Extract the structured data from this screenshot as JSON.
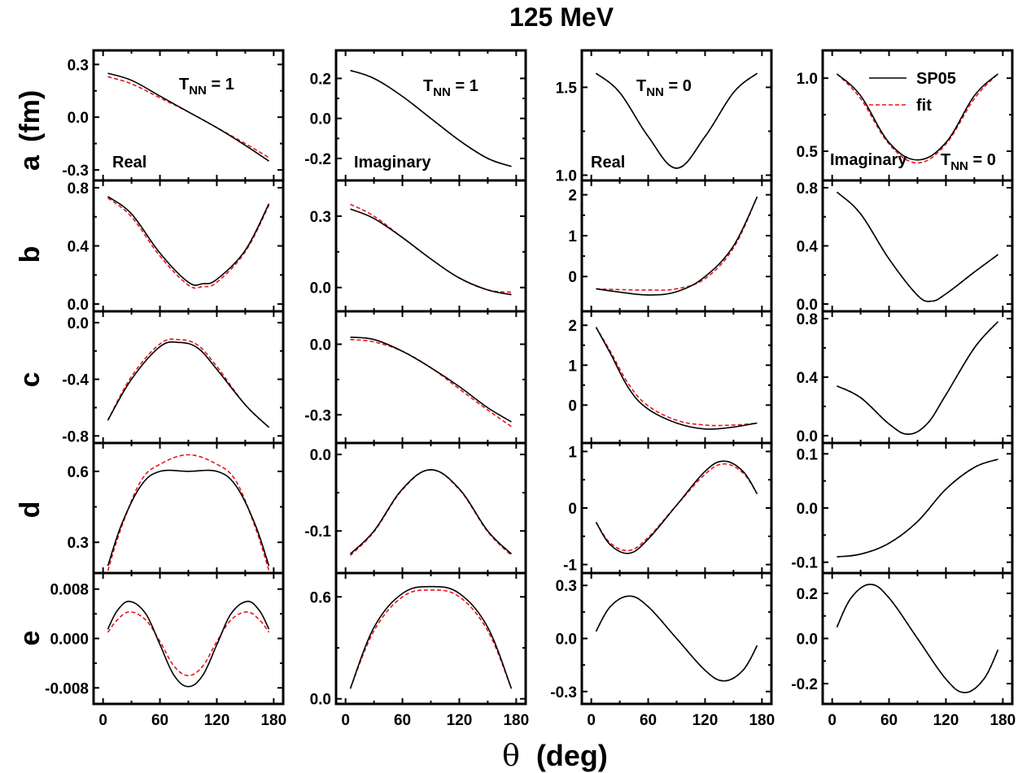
{
  "figure": {
    "title": "125 MeV",
    "xlabel_symbol": "θ",
    "xlabel_unit": "(deg)",
    "ylabel_prefix": "a",
    "ylabel_unit": "(fm)",
    "legend": {
      "solid": "SP05",
      "dashed": "fit"
    },
    "colors": {
      "solid": "#000000",
      "dashed": "#e8141c"
    }
  },
  "chart_data": {
    "type": "line",
    "x_range": [
      -10,
      190
    ],
    "x_ticks": [
      0,
      60,
      120,
      180
    ],
    "x_domain": [
      5,
      175
    ],
    "series_names": [
      "SP05",
      "fit"
    ],
    "columns": [
      {
        "index": 0,
        "type": "Real",
        "tnn": "1"
      },
      {
        "index": 1,
        "type": "Imaginary",
        "tnn": "1"
      },
      {
        "index": 2,
        "type": "Real",
        "tnn": "0"
      },
      {
        "index": 3,
        "type": "Imaginary",
        "tnn": "0"
      }
    ],
    "rows": [
      "a",
      "b",
      "c",
      "d",
      "e"
    ],
    "panels": [
      {
        "row": 0,
        "col": 0,
        "ylim": [
          -0.36,
          0.38
        ],
        "yticks": [
          "0.3",
          "0.0",
          "-0.3"
        ],
        "yticks_val": [
          0.3,
          0.0,
          -0.3
        ],
        "x": [
          5,
          30,
          60,
          90,
          120,
          150,
          175
        ],
        "SP05": [
          0.25,
          0.21,
          0.12,
          0.03,
          -0.06,
          -0.16,
          -0.25
        ],
        "fit": [
          0.23,
          0.19,
          0.11,
          0.03,
          -0.06,
          -0.15,
          -0.23
        ]
      },
      {
        "row": 0,
        "col": 1,
        "ylim": [
          -0.31,
          0.34
        ],
        "yticks": [
          "0.2",
          "0.0",
          "-0.2"
        ],
        "yticks_val": [
          0.2,
          0.0,
          -0.2
        ],
        "x": [
          5,
          30,
          60,
          90,
          120,
          150,
          175
        ],
        "SP05": [
          0.24,
          0.2,
          0.11,
          0.0,
          -0.11,
          -0.2,
          -0.24
        ],
        "fit": [
          0.24,
          0.2,
          0.11,
          0.0,
          -0.11,
          -0.2,
          -0.24
        ]
      },
      {
        "row": 0,
        "col": 2,
        "ylim": [
          0.97,
          1.71
        ],
        "yticks": [
          "1.5",
          "1.0"
        ],
        "yticks_val": [
          1.5,
          1.0
        ],
        "x": [
          5,
          30,
          60,
          90,
          120,
          150,
          175
        ],
        "SP05": [
          1.58,
          1.47,
          1.22,
          1.04,
          1.22,
          1.47,
          1.58
        ],
        "fit": [
          1.58,
          1.47,
          1.22,
          1.04,
          1.22,
          1.47,
          1.58
        ]
      },
      {
        "row": 0,
        "col": 3,
        "ylim": [
          0.3,
          1.19
        ],
        "yticks": [
          "1.0",
          "0.5"
        ],
        "yticks_val": [
          1.0,
          0.5
        ],
        "x": [
          5,
          30,
          60,
          90,
          120,
          150,
          175
        ],
        "SP05": [
          1.03,
          0.88,
          0.56,
          0.44,
          0.56,
          0.88,
          1.03
        ],
        "fit": [
          1.03,
          0.86,
          0.55,
          0.42,
          0.55,
          0.86,
          1.03
        ]
      },
      {
        "row": 1,
        "col": 0,
        "ylim": [
          -0.05,
          0.85
        ],
        "yticks": [
          "0.8",
          "0.4",
          "0.0"
        ],
        "yticks_val": [
          0.8,
          0.4,
          0.0
        ],
        "x": [
          5,
          30,
          60,
          90,
          105,
          120,
          150,
          175
        ],
        "SP05": [
          0.74,
          0.62,
          0.35,
          0.15,
          0.14,
          0.17,
          0.37,
          0.69
        ],
        "fit": [
          0.73,
          0.6,
          0.33,
          0.13,
          0.12,
          0.15,
          0.36,
          0.68
        ]
      },
      {
        "row": 1,
        "col": 1,
        "ylim": [
          -0.1,
          0.45
        ],
        "yticks": [
          "0.3",
          "0.0"
        ],
        "yticks_val": [
          0.3,
          0.0
        ],
        "x": [
          5,
          30,
          60,
          90,
          120,
          150,
          175
        ],
        "SP05": [
          0.33,
          0.29,
          0.21,
          0.12,
          0.04,
          -0.01,
          -0.03
        ],
        "fit": [
          0.35,
          0.3,
          0.21,
          0.12,
          0.04,
          -0.01,
          -0.02
        ]
      },
      {
        "row": 1,
        "col": 2,
        "ylim": [
          -0.85,
          2.35
        ],
        "yticks": [
          "2",
          "1",
          "0"
        ],
        "yticks_val": [
          2,
          1,
          0
        ],
        "x": [
          5,
          30,
          60,
          90,
          120,
          150,
          175
        ],
        "SP05": [
          -0.3,
          -0.38,
          -0.45,
          -0.37,
          0.0,
          0.75,
          1.95
        ],
        "fit": [
          -0.3,
          -0.32,
          -0.33,
          -0.3,
          -0.05,
          0.7,
          1.95
        ]
      },
      {
        "row": 1,
        "col": 3,
        "ylim": [
          -0.05,
          0.85
        ],
        "yticks": [
          "0.8",
          "0.4",
          "0.0"
        ],
        "yticks_val": [
          0.8,
          0.4,
          0.0
        ],
        "x": [
          5,
          30,
          60,
          90,
          105,
          120,
          150,
          175
        ],
        "SP05": [
          0.77,
          0.62,
          0.31,
          0.06,
          0.02,
          0.07,
          0.22,
          0.34
        ],
        "fit": [
          0.77,
          0.62,
          0.31,
          0.06,
          0.02,
          0.07,
          0.22,
          0.34
        ]
      },
      {
        "row": 2,
        "col": 0,
        "ylim": [
          -0.85,
          0.08
        ],
        "yticks": [
          "0.0",
          "-0.4",
          "-0.8"
        ],
        "yticks_val": [
          0.0,
          -0.4,
          -0.8
        ],
        "x": [
          5,
          30,
          60,
          80,
          100,
          120,
          150,
          175
        ],
        "SP05": [
          -0.69,
          -0.4,
          -0.17,
          -0.14,
          -0.18,
          -0.33,
          -0.58,
          -0.74
        ],
        "fit": [
          -0.69,
          -0.38,
          -0.15,
          -0.12,
          -0.16,
          -0.31,
          -0.58,
          -0.74
        ]
      },
      {
        "row": 2,
        "col": 1,
        "ylim": [
          -0.42,
          0.14
        ],
        "yticks": [
          "0.0",
          "-0.3"
        ],
        "yticks_val": [
          0.0,
          -0.3
        ],
        "x": [
          5,
          30,
          60,
          90,
          120,
          150,
          175
        ],
        "SP05": [
          0.03,
          0.02,
          -0.03,
          -0.1,
          -0.18,
          -0.27,
          -0.33
        ],
        "fit": [
          0.02,
          0.01,
          -0.03,
          -0.1,
          -0.19,
          -0.28,
          -0.35
        ]
      },
      {
        "row": 2,
        "col": 2,
        "ylim": [
          -0.95,
          2.35
        ],
        "yticks": [
          "2",
          "1",
          "0"
        ],
        "yticks_val": [
          2,
          1,
          0
        ],
        "x": [
          5,
          20,
          40,
          60,
          90,
          120,
          150,
          175
        ],
        "SP05": [
          1.95,
          1.3,
          0.4,
          -0.1,
          -0.45,
          -0.6,
          -0.55,
          -0.45
        ],
        "fit": [
          1.95,
          1.35,
          0.5,
          -0.02,
          -0.38,
          -0.5,
          -0.5,
          -0.45
        ]
      },
      {
        "row": 2,
        "col": 3,
        "ylim": [
          -0.05,
          0.85
        ],
        "yticks": [
          "0.8",
          "0.4",
          "0.0"
        ],
        "yticks_val": [
          0.8,
          0.4,
          0.0
        ],
        "x": [
          5,
          30,
          60,
          80,
          100,
          120,
          150,
          175
        ],
        "SP05": [
          0.34,
          0.26,
          0.08,
          0.01,
          0.08,
          0.28,
          0.6,
          0.78
        ],
        "fit": [
          0.34,
          0.26,
          0.08,
          0.01,
          0.08,
          0.28,
          0.6,
          0.78
        ]
      },
      {
        "row": 3,
        "col": 0,
        "ylim": [
          0.17,
          0.72
        ],
        "yticks": [
          "0.6",
          "0.3"
        ],
        "yticks_val": [
          0.6,
          0.3
        ],
        "x": [
          5,
          20,
          40,
          60,
          90,
          120,
          140,
          160,
          175
        ],
        "SP05": [
          0.2,
          0.38,
          0.54,
          0.6,
          0.6,
          0.6,
          0.54,
          0.38,
          0.2
        ],
        "fit": [
          0.18,
          0.37,
          0.56,
          0.63,
          0.67,
          0.63,
          0.56,
          0.37,
          0.18
        ]
      },
      {
        "row": 3,
        "col": 1,
        "ylim": [
          -0.155,
          0.015
        ],
        "yticks": [
          "0.0",
          "-0.1"
        ],
        "yticks_val": [
          0.0,
          -0.1
        ],
        "x": [
          5,
          30,
          60,
          90,
          120,
          150,
          175
        ],
        "SP05": [
          -0.13,
          -0.1,
          -0.045,
          -0.02,
          -0.045,
          -0.1,
          -0.13
        ],
        "fit": [
          -0.132,
          -0.101,
          -0.046,
          -0.02,
          -0.046,
          -0.101,
          -0.132
        ]
      },
      {
        "row": 3,
        "col": 2,
        "ylim": [
          -1.15,
          1.15
        ],
        "yticks": [
          "1",
          "0",
          "-1"
        ],
        "yticks_val": [
          1,
          0,
          -1
        ],
        "x": [
          5,
          20,
          40,
          60,
          90,
          120,
          140,
          160,
          175
        ],
        "SP05": [
          -0.25,
          -0.65,
          -0.8,
          -0.55,
          0.05,
          0.65,
          0.83,
          0.65,
          0.25
        ],
        "fit": [
          -0.25,
          -0.62,
          -0.75,
          -0.52,
          0.05,
          0.6,
          0.78,
          0.62,
          0.25
        ]
      },
      {
        "row": 3,
        "col": 3,
        "ylim": [
          -0.12,
          0.12
        ],
        "yticks": [
          "0.1",
          "0.0",
          "-0.1"
        ],
        "yticks_val": [
          0.1,
          0.0,
          -0.1
        ],
        "x": [
          5,
          30,
          60,
          90,
          120,
          150,
          175
        ],
        "SP05": [
          -0.09,
          -0.085,
          -0.065,
          -0.025,
          0.035,
          0.075,
          0.09
        ],
        "fit": [
          -0.09,
          -0.085,
          -0.065,
          -0.025,
          0.035,
          0.075,
          0.09
        ]
      },
      {
        "row": 4,
        "col": 0,
        "ylim": [
          -0.0106,
          0.0106
        ],
        "yticks": [
          "0.008",
          "0.000",
          "-0.008"
        ],
        "yticks_val": [
          0.008,
          0.0,
          -0.008
        ],
        "x": [
          5,
          15,
          28,
          45,
          60,
          75,
          90,
          105,
          120,
          135,
          152,
          165,
          175
        ],
        "SP05": [
          0.0015,
          0.0045,
          0.006,
          0.004,
          -0.001,
          -0.006,
          -0.0078,
          -0.006,
          -0.001,
          0.004,
          0.006,
          0.0045,
          0.0015
        ],
        "fit": [
          0.001,
          0.003,
          0.0043,
          0.003,
          -0.0005,
          -0.0045,
          -0.006,
          -0.0045,
          -0.0005,
          0.003,
          0.0043,
          0.003,
          0.001
        ]
      },
      {
        "row": 4,
        "col": 1,
        "ylim": [
          -0.03,
          0.74
        ],
        "yticks": [
          "0.6",
          "0.0"
        ],
        "yticks_val": [
          0.6,
          0.0
        ],
        "x": [
          5,
          30,
          60,
          90,
          120,
          150,
          175
        ],
        "SP05": [
          0.06,
          0.42,
          0.62,
          0.66,
          0.62,
          0.42,
          0.06
        ],
        "fit": [
          0.06,
          0.4,
          0.6,
          0.64,
          0.6,
          0.4,
          0.06
        ]
      },
      {
        "row": 4,
        "col": 2,
        "ylim": [
          -0.37,
          0.37
        ],
        "yticks": [
          "0.3",
          "0.0",
          "-0.3"
        ],
        "yticks_val": [
          0.3,
          0.0,
          -0.3
        ],
        "x": [
          5,
          20,
          40,
          60,
          90,
          120,
          140,
          160,
          175
        ],
        "SP05": [
          0.04,
          0.18,
          0.24,
          0.18,
          0.0,
          -0.18,
          -0.24,
          -0.18,
          -0.04
        ],
        "fit": [
          0.04,
          0.18,
          0.24,
          0.18,
          0.0,
          -0.18,
          -0.24,
          -0.18,
          -0.04
        ]
      },
      {
        "row": 4,
        "col": 3,
        "ylim": [
          -0.29,
          0.29
        ],
        "yticks": [
          "0.2",
          "0.0",
          "-0.2"
        ],
        "yticks_val": [
          0.2,
          0.0,
          -0.2
        ],
        "x": [
          5,
          20,
          40,
          60,
          90,
          120,
          140,
          160,
          175
        ],
        "SP05": [
          0.05,
          0.18,
          0.24,
          0.18,
          0.0,
          -0.18,
          -0.24,
          -0.18,
          -0.05
        ],
        "fit": [
          0.05,
          0.18,
          0.24,
          0.18,
          0.0,
          -0.18,
          -0.24,
          -0.18,
          -0.05
        ]
      }
    ]
  }
}
